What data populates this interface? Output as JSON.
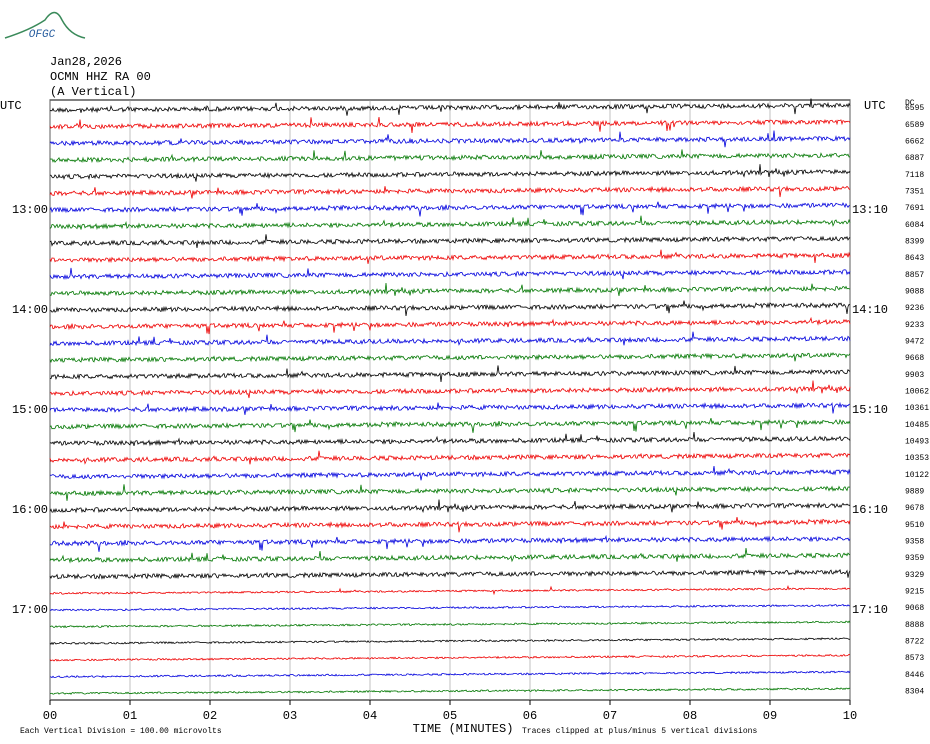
{
  "logo": "OFGC",
  "header": {
    "date": "Jan28,2026",
    "station": "OCMN HHZ RA 00",
    "component": "(A Vertical)"
  },
  "left_times": [
    "UTC",
    "13:00",
    "14:00",
    "15:00",
    "16:00",
    "17:00"
  ],
  "right_times": [
    "UTC",
    "13:10",
    "14:10",
    "15:10",
    "16:10",
    "17:10"
  ],
  "dc_label": "DC",
  "trace_values": [
    6595,
    6589,
    6662,
    6887,
    7118,
    7351,
    7691,
    6084,
    8399,
    8643,
    8857,
    9088,
    9236,
    9233,
    9472,
    9668,
    9903,
    10062,
    10361,
    10485,
    10493,
    10353,
    10122,
    9889,
    9678,
    9510,
    9358,
    9359,
    9329,
    9215,
    9068,
    8888,
    8722,
    8573,
    8446,
    8304
  ],
  "x_axis": {
    "ticks": [
      "00",
      "01",
      "02",
      "03",
      "04",
      "05",
      "06",
      "07",
      "08",
      "09",
      "10"
    ],
    "label": "TIME (MINUTES)"
  },
  "footer": {
    "scale": "Each Vertical Division =  100.00 microvolts",
    "clip": "Traces clipped at plus/minus 5 vertical divisions"
  }
}
